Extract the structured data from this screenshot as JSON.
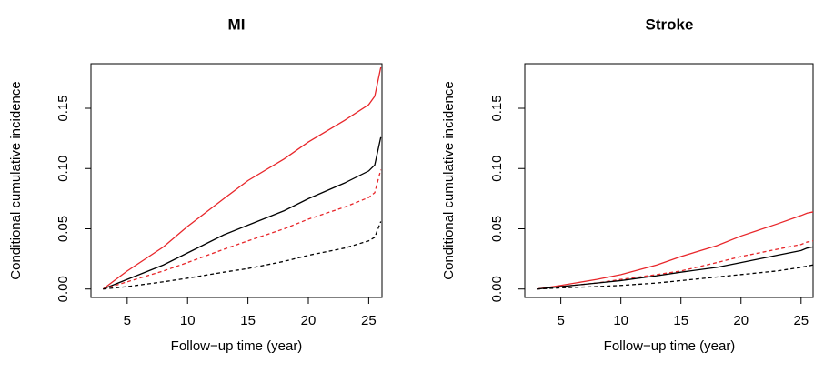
{
  "chart_data": [
    {
      "type": "line",
      "title": "MI",
      "xlabel": "Follow−up time (year)",
      "ylabel": "Conditional cumulative incidence",
      "x": [
        3,
        5,
        8,
        10,
        13,
        15,
        18,
        20,
        23,
        25,
        25.5,
        26
      ],
      "series": [
        {
          "color": "#e8262a",
          "linestyle": "solid",
          "values": [
            0,
            0.015,
            0.035,
            0.052,
            0.075,
            0.09,
            0.108,
            0.122,
            0.14,
            0.153,
            0.16,
            0.184
          ]
        },
        {
          "color": "#000000",
          "linestyle": "solid",
          "values": [
            0,
            0.008,
            0.02,
            0.03,
            0.045,
            0.053,
            0.065,
            0.075,
            0.088,
            0.098,
            0.103,
            0.126
          ]
        },
        {
          "color": "#e8262a",
          "linestyle": "dashed",
          "values": [
            0,
            0.006,
            0.015,
            0.022,
            0.033,
            0.04,
            0.05,
            0.058,
            0.068,
            0.076,
            0.08,
            0.099
          ]
        },
        {
          "color": "#000000",
          "linestyle": "dashed",
          "values": [
            0,
            0.002,
            0.006,
            0.009,
            0.014,
            0.017,
            0.023,
            0.028,
            0.034,
            0.04,
            0.043,
            0.056
          ]
        }
      ],
      "xlim": [
        2,
        26.1
      ],
      "ylim": [
        -0.007,
        0.187
      ],
      "xticks": [
        5,
        10,
        15,
        20,
        25
      ],
      "yticks": [
        {
          "value": 0,
          "label": "0.00"
        },
        {
          "value": 0.05,
          "label": "0.05"
        },
        {
          "value": 0.1,
          "label": "0.10"
        },
        {
          "value": 0.15,
          "label": "0.15"
        }
      ]
    },
    {
      "type": "line",
      "title": "Stroke",
      "xlabel": "Follow−up time (year)",
      "ylabel": "Conditional cumulative incidence",
      "x": [
        3,
        5,
        8,
        10,
        13,
        15,
        18,
        20,
        23,
        25,
        25.5,
        26
      ],
      "series": [
        {
          "color": "#e8262a",
          "linestyle": "solid",
          "values": [
            0,
            0.003,
            0.008,
            0.012,
            0.02,
            0.027,
            0.036,
            0.044,
            0.054,
            0.061,
            0.063,
            0.064
          ]
        },
        {
          "color": "#e8262a",
          "linestyle": "dashed",
          "values": [
            0,
            0.002,
            0.005,
            0.008,
            0.012,
            0.015,
            0.022,
            0.027,
            0.033,
            0.037,
            0.039,
            0.04
          ]
        },
        {
          "color": "#000000",
          "linestyle": "solid",
          "values": [
            0,
            0.002,
            0.005,
            0.007,
            0.011,
            0.014,
            0.018,
            0.022,
            0.028,
            0.032,
            0.034,
            0.035
          ]
        },
        {
          "color": "#000000",
          "linestyle": "dashed",
          "values": [
            0,
            0.001,
            0.002,
            0.003,
            0.005,
            0.007,
            0.01,
            0.012,
            0.015,
            0.018,
            0.019,
            0.02
          ]
        }
      ],
      "xlim": [
        2,
        26
      ],
      "ylim": [
        -0.007,
        0.187
      ],
      "xticks": [
        5,
        10,
        15,
        20,
        25
      ],
      "yticks": [
        {
          "value": 0,
          "label": "0.00"
        },
        {
          "value": 0.05,
          "label": "0.05"
        },
        {
          "value": 0.1,
          "label": "0.10"
        },
        {
          "value": 0.15,
          "label": "0.15"
        }
      ]
    }
  ]
}
